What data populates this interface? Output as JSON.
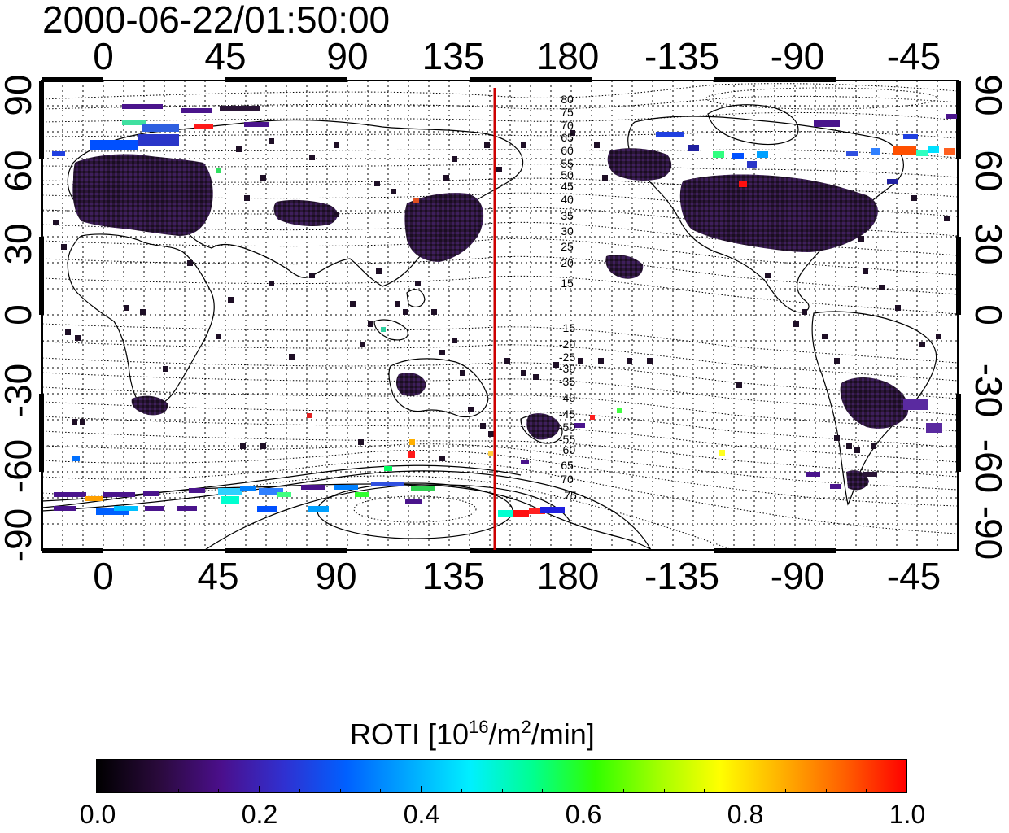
{
  "title": "2000-06-22/01:50:00",
  "longitude_ticks": [
    "0",
    "45",
    "90",
    "135",
    "180",
    "-135",
    "-90",
    "-45"
  ],
  "latitude_ticks": [
    "90",
    "60",
    "30",
    "0",
    "-30",
    "-60",
    "-90"
  ],
  "contour_labels_north": [
    "80",
    "75",
    "70",
    "65",
    "60",
    "55",
    "50",
    "45",
    "40",
    "35",
    "30",
    "25",
    "20",
    "15"
  ],
  "contour_labels_south": [
    "-15",
    "-20",
    "-25",
    "-30",
    "-35",
    "-40",
    "-45",
    "-50",
    "-55",
    "-60",
    "65",
    "70",
    "75"
  ],
  "colorbar": {
    "title_main": "ROTI  [10",
    "title_exp1": "16",
    "title_mid": "/m",
    "title_exp2": "2",
    "title_end": "/min]",
    "range": [
      0.0,
      1.0
    ],
    "ticks": [
      "0.0",
      "0.2",
      "0.4",
      "0.6",
      "0.8",
      "1.0"
    ],
    "stops": [
      "#000000",
      "#2a0a3c",
      "#4b0f8c",
      "#3030d0",
      "#0060ff",
      "#00a8ff",
      "#00f0ff",
      "#00ff90",
      "#30ff00",
      "#a0ff00",
      "#ffff00",
      "#ffb000",
      "#ff6000",
      "#ff0000"
    ]
  },
  "map": {
    "projection": "equirectangular",
    "lon_center": 150,
    "meridian_marker_lon": 150,
    "meridian_marker_color": "#cc0000",
    "grid": true
  }
}
